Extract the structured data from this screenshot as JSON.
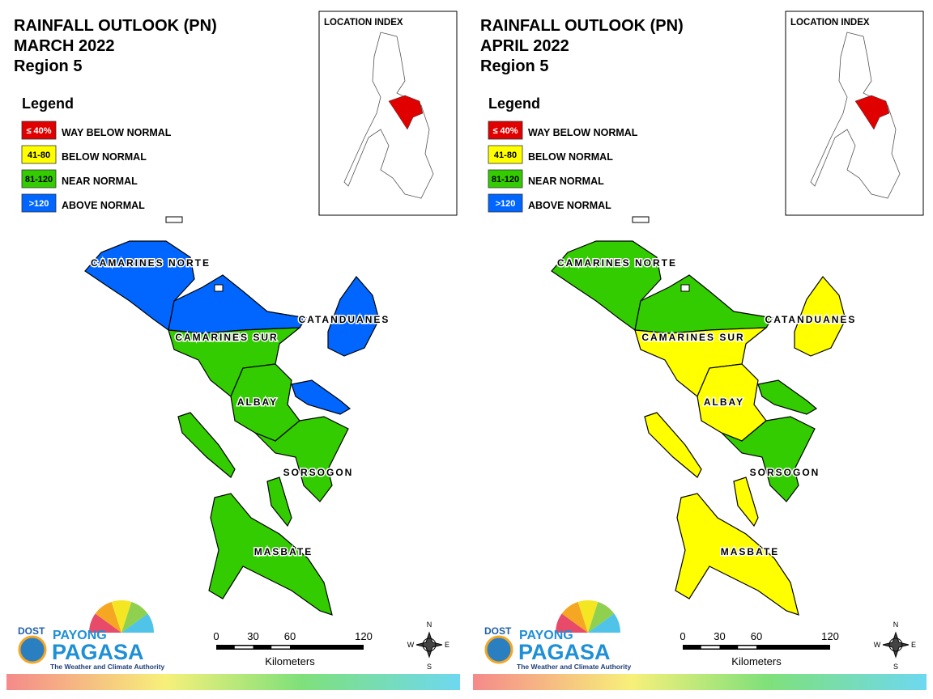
{
  "panels": [
    {
      "title": {
        "line1": "RAINFALL OUTLOOK (PN)",
        "line2": "MARCH 2022",
        "line3": "Region 5"
      },
      "legend": {
        "title": "Legend",
        "items": [
          {
            "range": "≤ 40%",
            "label": "WAY BELOW NORMAL",
            "color": "#e00000"
          },
          {
            "range": "41-80",
            "label": "BELOW NORMAL",
            "color": "#ffff00"
          },
          {
            "range": "81-120",
            "label": "NEAR NORMAL",
            "color": "#33cc00"
          },
          {
            "range": ">120",
            "label": "ABOVE NORMAL",
            "color": "#0066ff"
          }
        ]
      },
      "location_index": "LOCATION INDEX",
      "provinces": [
        "CAMARINES NORTE",
        "CAMARINES SUR",
        "CATANDUANES",
        "ALBAY",
        "SORSOGON",
        "MASBATE"
      ],
      "scale": {
        "ticks": [
          0,
          30,
          60,
          120
        ],
        "unit": "Kilometers"
      },
      "compass": [
        "N",
        "E",
        "S",
        "W"
      ],
      "logo": {
        "agency": "DOST",
        "brand_top": "PAYONG",
        "brand": "PAGASA",
        "tagline": "The Weather and Climate Authority"
      }
    },
    {
      "title": {
        "line1": "RAINFALL OUTLOOK (PN)",
        "line2": "APRIL 2022",
        "line3": "Region 5"
      },
      "legend": {
        "title": "Legend",
        "items": [
          {
            "range": "≤ 40%",
            "label": "WAY BELOW NORMAL",
            "color": "#e00000"
          },
          {
            "range": "41-80",
            "label": "BELOW NORMAL",
            "color": "#ffff00"
          },
          {
            "range": "81-120",
            "label": "NEAR NORMAL",
            "color": "#33cc00"
          },
          {
            "range": ">120",
            "label": "ABOVE NORMAL",
            "color": "#0066ff"
          }
        ]
      },
      "location_index": "LOCATION INDEX",
      "provinces": [
        "CAMARINES NORTE",
        "CAMARINES SUR",
        "CATANDUANES",
        "ALBAY",
        "SORSOGON",
        "MASBATE"
      ],
      "scale": {
        "ticks": [
          0,
          30,
          60,
          120
        ],
        "unit": "Kilometers"
      },
      "compass": [
        "N",
        "E",
        "S",
        "W"
      ],
      "logo": {
        "agency": "DOST",
        "brand_top": "PAYONG",
        "brand": "PAGASA",
        "tagline": "The Weather and Climate Authority"
      }
    }
  ]
}
